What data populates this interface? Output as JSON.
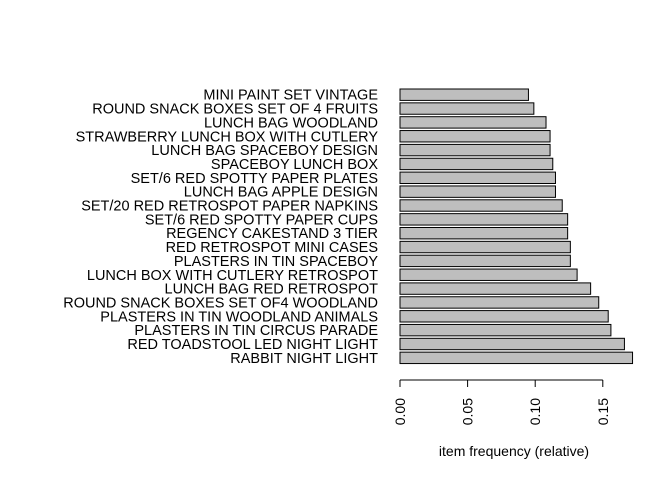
{
  "chart_data": {
    "type": "bar",
    "orientation": "horizontal",
    "categories": [
      "MINI PAINT SET VINTAGE",
      "ROUND SNACK BOXES SET OF 4 FRUITS",
      "LUNCH BAG WOODLAND",
      "STRAWBERRY LUNCH BOX WITH CUTLERY",
      "LUNCH BAG SPACEBOY DESIGN",
      "SPACEBOY LUNCH BOX",
      "SET/6 RED SPOTTY PAPER PLATES",
      "LUNCH BAG APPLE DESIGN",
      "SET/20 RED RETROSPOT PAPER NAPKINS",
      "SET/6 RED SPOTTY PAPER CUPS",
      "REGENCY CAKESTAND 3 TIER",
      "RED RETROSPOT MINI CASES",
      "PLASTERS IN TIN SPACEBOY",
      "LUNCH BOX WITH CUTLERY RETROSPOT",
      "LUNCH BAG RED RETROSPOT",
      "ROUND SNACK BOXES SET OF4 WOODLAND",
      "PLASTERS IN TIN WOODLAND ANIMALS",
      "PLASTERS IN TIN CIRCUS PARADE",
      "RED TOADSTOOL LED NIGHT LIGHT",
      "RABBIT NIGHT LIGHT"
    ],
    "values": [
      0.095,
      0.099,
      0.108,
      0.111,
      0.111,
      0.113,
      0.115,
      0.115,
      0.12,
      0.124,
      0.124,
      0.126,
      0.126,
      0.131,
      0.141,
      0.147,
      0.154,
      0.156,
      0.166,
      0.172
    ],
    "xlabel": "item frequency (relative)",
    "xticks": [
      "0.00",
      "0.05",
      "0.10",
      "0.15"
    ],
    "xlim": [
      0,
      0.172
    ],
    "bar_color": "#bebebe",
    "grid": false
  }
}
